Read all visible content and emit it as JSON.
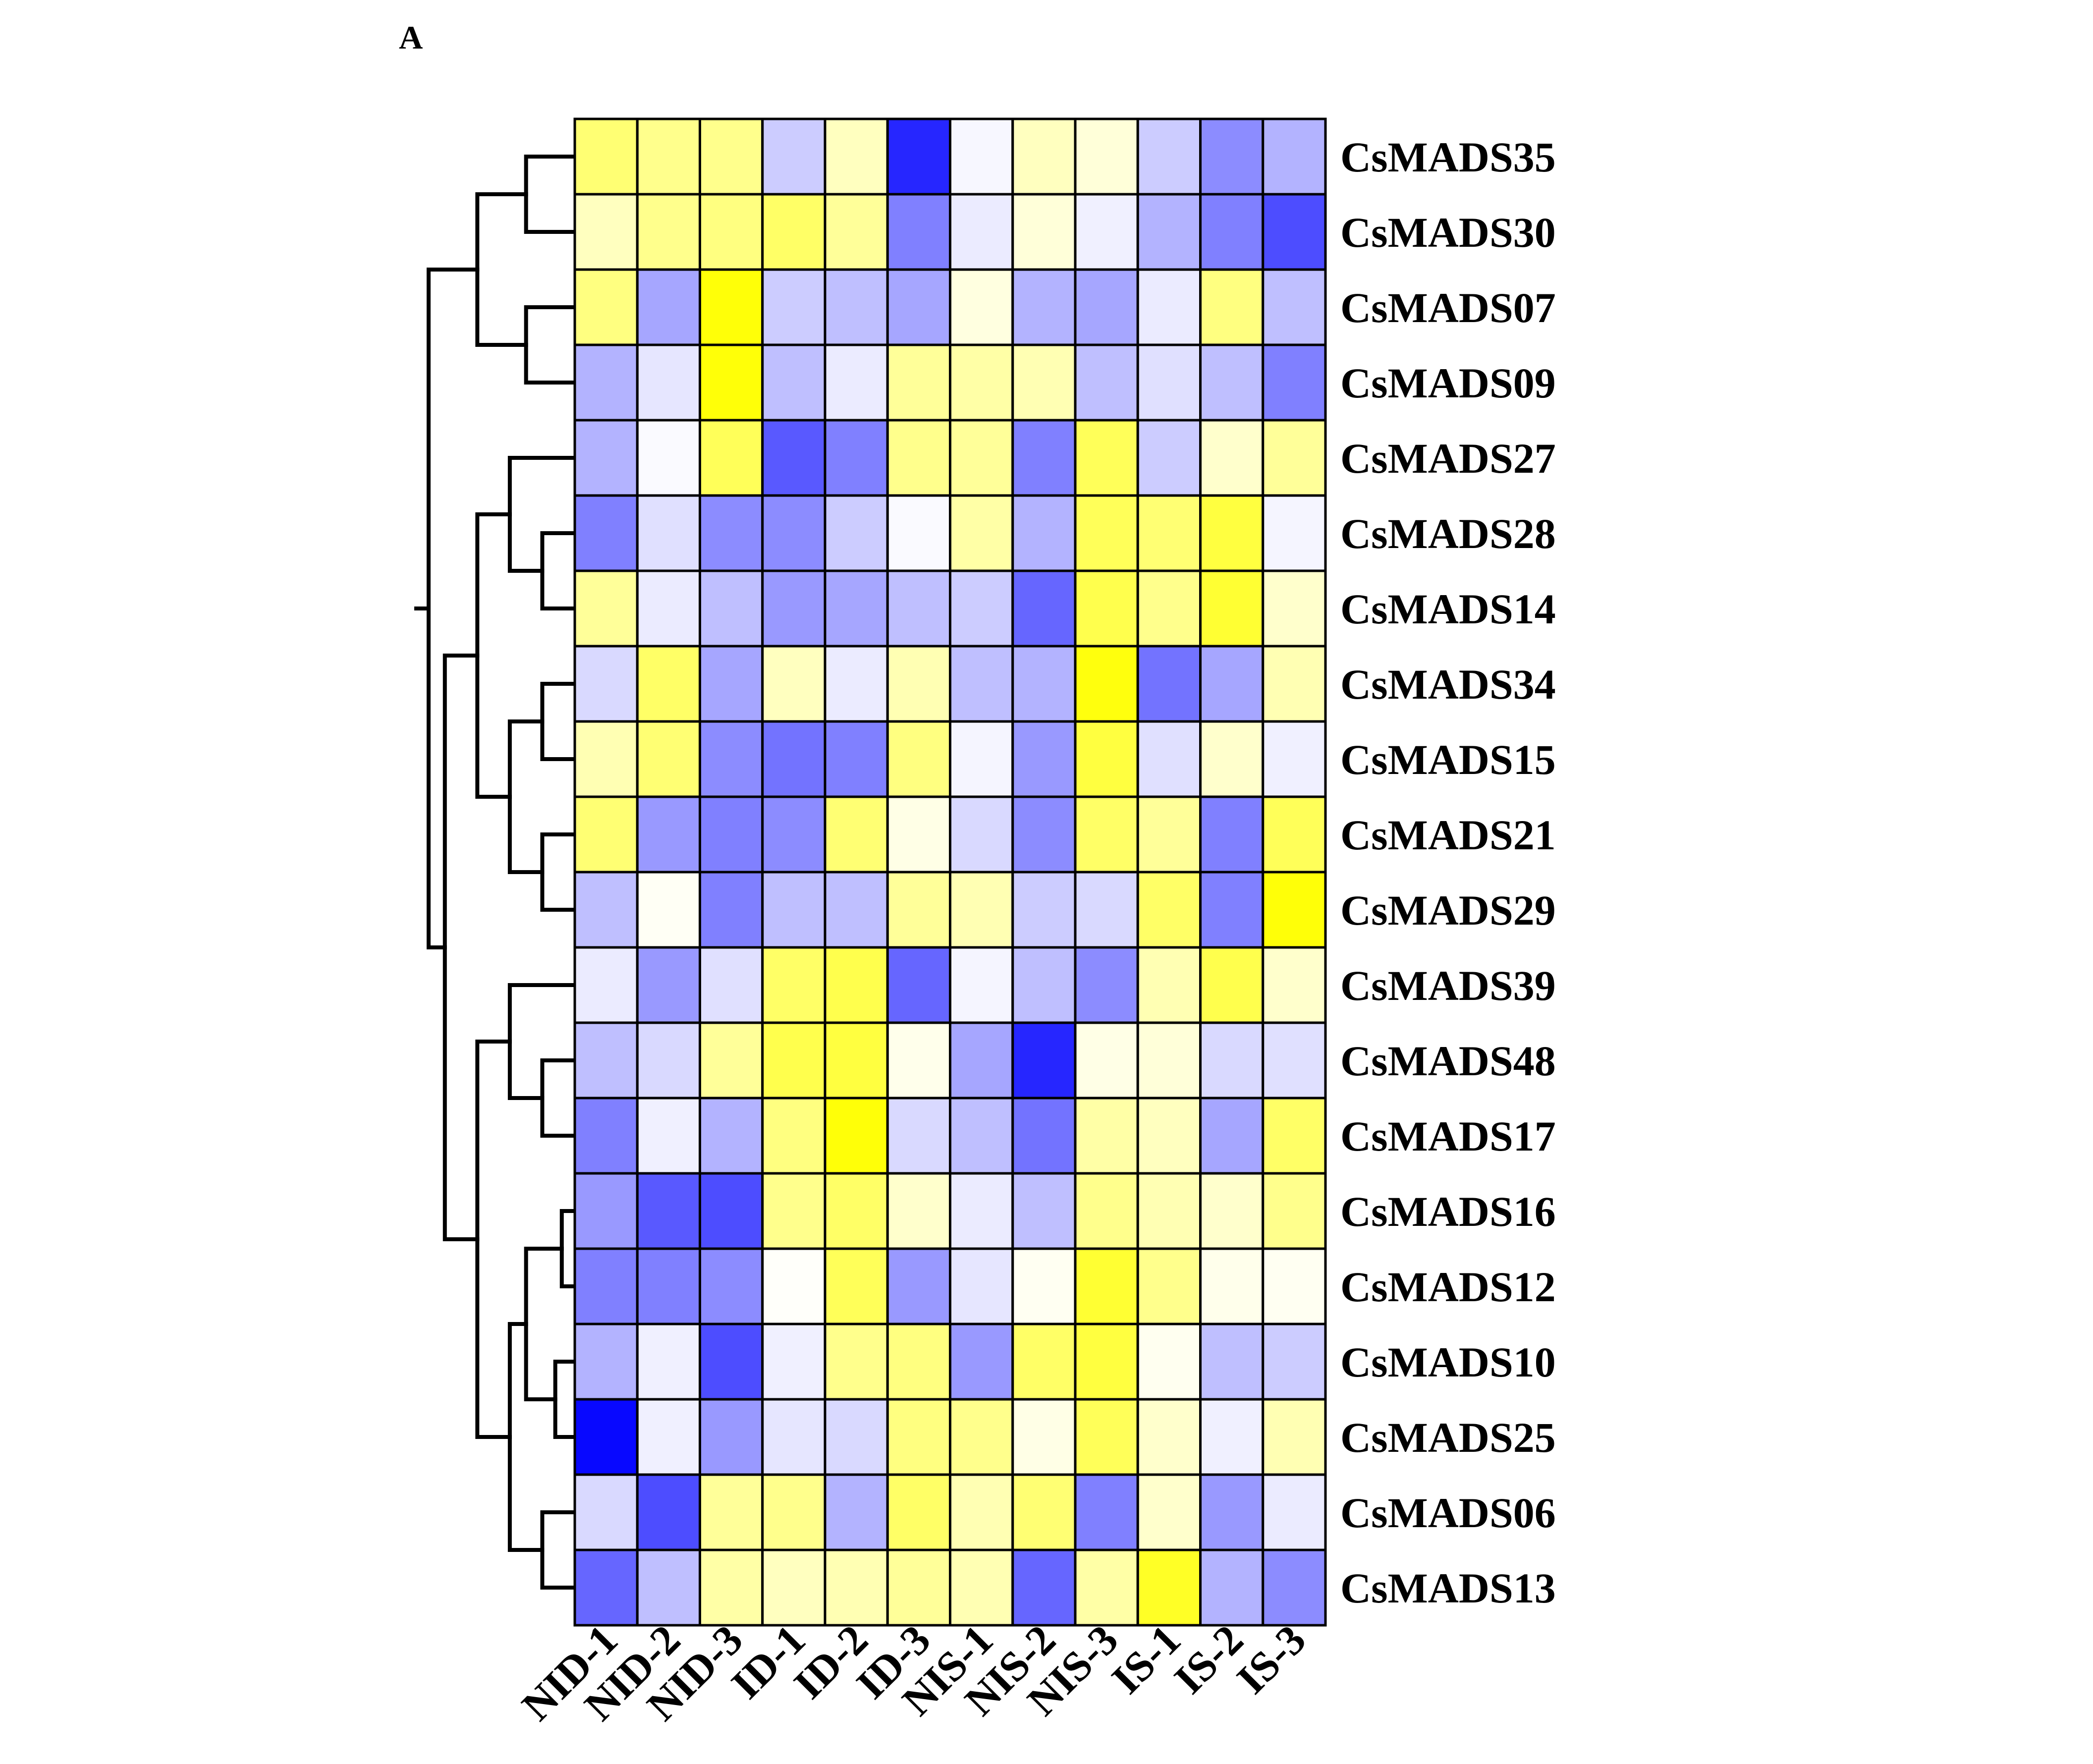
{
  "panel_label": "A",
  "chart_data": {
    "type": "heatmap",
    "title": "",
    "xlabel": "",
    "ylabel": "",
    "columns": [
      "NID-1",
      "NID-2",
      "NID-3",
      "ID-1",
      "ID-2",
      "ID-3",
      "NIS-1",
      "NIS-2",
      "NIS-3",
      "IS-1",
      "IS-2",
      "IS-3"
    ],
    "rows": [
      "CsMADS35",
      "CsMADS30",
      "CsMADS07",
      "CsMADS09",
      "CsMADS27",
      "CsMADS28",
      "CsMADS14",
      "CsMADS34",
      "CsMADS15",
      "CsMADS21",
      "CsMADS29",
      "CsMADS39",
      "CsMADS48",
      "CsMADS17",
      "CsMADS16",
      "CsMADS12",
      "CsMADS10",
      "CsMADS25",
      "CsMADS06",
      "CsMADS13"
    ],
    "color_scale": {
      "low": "#0000ff",
      "mid": "#ffffff",
      "high": "#ffff00",
      "range": [
        -1,
        1
      ]
    },
    "values": [
      [
        0.55,
        0.45,
        0.45,
        -0.2,
        0.25,
        -0.85,
        -0.03,
        0.25,
        0.15,
        -0.2,
        -0.45,
        -0.3
      ],
      [
        0.25,
        0.45,
        0.5,
        0.6,
        0.4,
        -0.5,
        -0.08,
        0.15,
        -0.06,
        -0.3,
        -0.5,
        -0.7
      ],
      [
        0.5,
        -0.35,
        0.97,
        -0.2,
        -0.25,
        -0.35,
        0.12,
        -0.3,
        -0.35,
        -0.08,
        0.5,
        -0.25
      ],
      [
        -0.3,
        -0.1,
        0.97,
        -0.25,
        -0.08,
        0.4,
        0.35,
        0.3,
        -0.25,
        -0.12,
        -0.25,
        -0.5
      ],
      [
        -0.3,
        -0.02,
        0.65,
        -0.65,
        -0.5,
        0.45,
        0.4,
        -0.5,
        0.65,
        -0.2,
        0.2,
        0.4
      ],
      [
        -0.5,
        -0.12,
        -0.45,
        -0.45,
        -0.2,
        -0.02,
        0.35,
        -0.3,
        0.65,
        0.55,
        0.75,
        -0.04
      ],
      [
        0.4,
        -0.08,
        -0.25,
        -0.4,
        -0.35,
        -0.25,
        -0.2,
        -0.6,
        0.7,
        0.45,
        0.8,
        0.2
      ],
      [
        -0.15,
        0.6,
        -0.35,
        0.25,
        -0.08,
        0.3,
        -0.25,
        -0.3,
        0.95,
        -0.55,
        -0.35,
        0.3
      ],
      [
        0.3,
        0.55,
        -0.45,
        -0.55,
        -0.5,
        0.5,
        -0.04,
        -0.4,
        0.75,
        -0.12,
        0.2,
        -0.06
      ],
      [
        0.55,
        -0.4,
        -0.5,
        -0.45,
        0.55,
        0.1,
        -0.15,
        -0.45,
        0.6,
        0.4,
        -0.5,
        0.65
      ],
      [
        -0.25,
        0.04,
        -0.5,
        -0.25,
        -0.25,
        0.4,
        0.3,
        -0.2,
        -0.15,
        0.6,
        -0.5,
        0.97
      ],
      [
        -0.08,
        -0.4,
        -0.12,
        0.6,
        0.7,
        -0.6,
        -0.04,
        -0.25,
        -0.45,
        0.3,
        0.7,
        0.2
      ],
      [
        -0.25,
        -0.15,
        0.4,
        0.7,
        0.75,
        0.08,
        -0.35,
        -0.85,
        0.1,
        0.15,
        -0.15,
        -0.12
      ],
      [
        -0.5,
        -0.06,
        -0.3,
        0.5,
        0.97,
        -0.15,
        -0.25,
        -0.55,
        0.35,
        0.25,
        -0.35,
        0.6
      ],
      [
        -0.4,
        -0.65,
        -0.7,
        0.45,
        0.6,
        0.2,
        -0.08,
        -0.25,
        0.45,
        0.3,
        0.2,
        0.45
      ],
      [
        -0.5,
        -0.5,
        -0.45,
        0.02,
        0.65,
        -0.4,
        -0.1,
        0.05,
        0.8,
        0.45,
        0.08,
        0.05
      ],
      [
        -0.3,
        -0.06,
        -0.7,
        -0.06,
        0.45,
        0.5,
        -0.4,
        0.6,
        0.75,
        0.06,
        -0.25,
        -0.2
      ],
      [
        -0.97,
        -0.06,
        -0.4,
        -0.1,
        -0.15,
        0.5,
        0.45,
        0.1,
        0.65,
        0.2,
        -0.06,
        0.3
      ],
      [
        -0.15,
        -0.7,
        0.4,
        0.45,
        -0.3,
        0.6,
        0.3,
        0.55,
        -0.5,
        0.2,
        -0.4,
        -0.08
      ],
      [
        -0.6,
        -0.25,
        0.35,
        0.25,
        0.3,
        0.4,
        0.3,
        -0.6,
        0.35,
        0.85,
        -0.3,
        -0.45
      ]
    ],
    "dendrogram": [
      {
        "children": [
          "CsMADS35",
          "CsMADS30"
        ],
        "height": 0.15
      },
      {
        "children": [
          "CsMADS07",
          "CsMADS09"
        ],
        "height": 0.15
      },
      {
        "children": [
          0,
          1
        ],
        "height": 0.3
      },
      {
        "children": [
          "CsMADS28",
          "CsMADS14"
        ],
        "height": 0.1
      },
      {
        "children": [
          "CsMADS27",
          3
        ],
        "height": 0.2
      },
      {
        "children": [
          "CsMADS34",
          "CsMADS15"
        ],
        "height": 0.1
      },
      {
        "children": [
          "CsMADS21",
          "CsMADS29"
        ],
        "height": 0.1
      },
      {
        "children": [
          5,
          6
        ],
        "height": 0.2
      },
      {
        "children": [
          4,
          7
        ],
        "height": 0.3
      },
      {
        "children": [
          "CsMADS48",
          "CsMADS17"
        ],
        "height": 0.1
      },
      {
        "children": [
          "CsMADS39",
          9
        ],
        "height": 0.2
      },
      {
        "children": [
          "CsMADS16",
          "CsMADS12"
        ],
        "height": 0.04
      },
      {
        "children": [
          "CsMADS10",
          "CsMADS25"
        ],
        "height": 0.06
      },
      {
        "children": [
          11,
          12
        ],
        "height": 0.15
      },
      {
        "children": [
          "CsMADS06",
          "CsMADS13"
        ],
        "height": 0.1
      },
      {
        "children": [
          13,
          14
        ],
        "height": 0.2
      },
      {
        "children": [
          10,
          15
        ],
        "height": 0.3
      },
      {
        "children": [
          8,
          16
        ],
        "height": 0.4
      },
      {
        "children": [
          2,
          17
        ],
        "height": 0.45
      }
    ]
  }
}
